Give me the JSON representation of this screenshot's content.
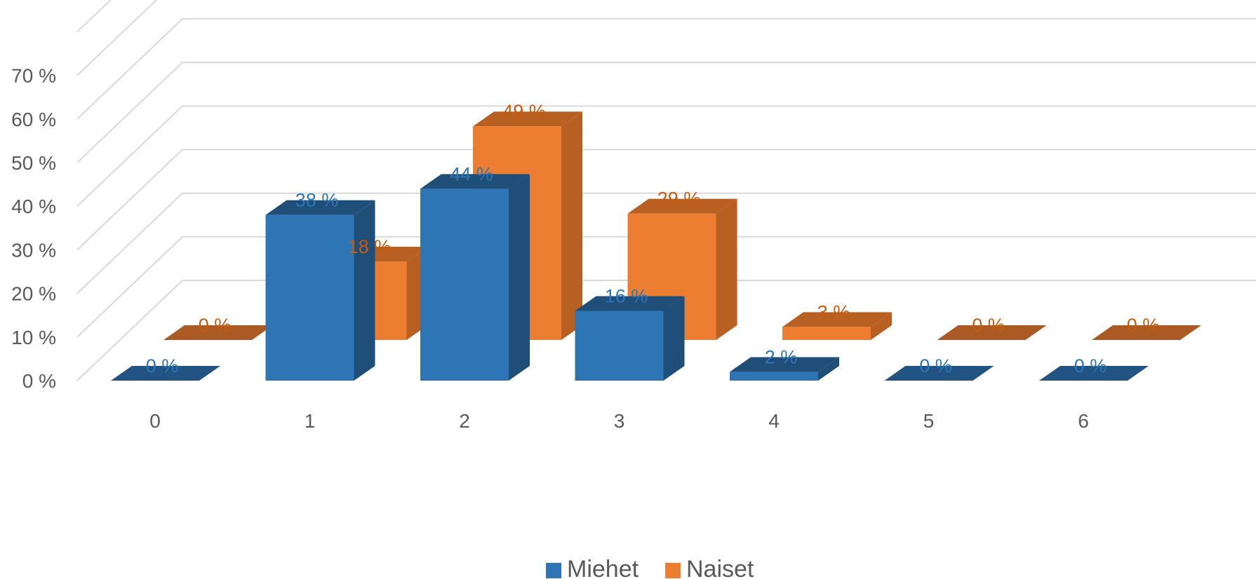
{
  "chart_data": {
    "type": "bar",
    "categories": [
      "0",
      "1",
      "2",
      "3",
      "4",
      "5",
      "6"
    ],
    "series": [
      {
        "name": "Miehet",
        "values": [
          0,
          38,
          44,
          16,
          2,
          0,
          0
        ],
        "labels": [
          "0 %",
          "38 %",
          "44 %",
          "16 %",
          "2 %",
          "0 %",
          "0 %"
        ],
        "color": "#2E75B6"
      },
      {
        "name": "Naiset",
        "values": [
          0,
          18,
          49,
          29,
          3,
          0,
          0
        ],
        "labels": [
          "0 %",
          "18 %",
          "49 %",
          "29 %",
          "3 %",
          "0 %",
          "0 %"
        ],
        "color": "#ED7D31"
      }
    ],
    "y_ticks": [
      "0 %",
      "10 %",
      "20 %",
      "30 %",
      "40 %",
      "50 %",
      "60 %",
      "70 %"
    ],
    "ylim": [
      0,
      70
    ],
    "grid": true,
    "legend_position": "bottom",
    "title": "",
    "xlabel": "",
    "ylabel": ""
  }
}
